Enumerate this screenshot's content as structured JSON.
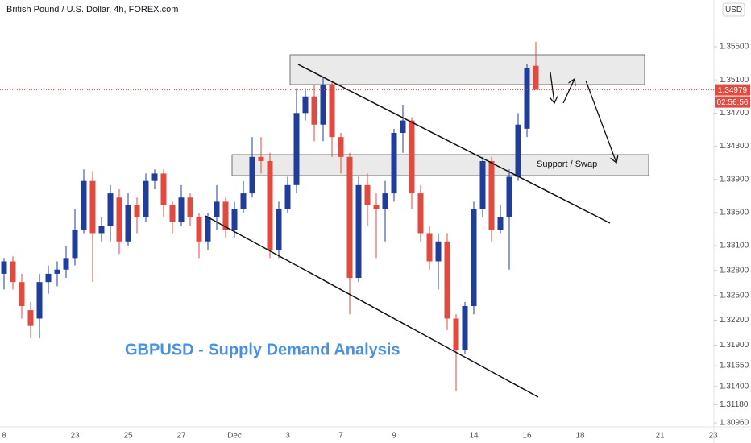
{
  "chart_data": {
    "type": "candlestick",
    "header": "British Pound / U.S. Dollar, 4h, FOREX.com",
    "title": "GBPUSD - Supply Demand Analysis",
    "annotations": [
      "Support / Swap"
    ],
    "currency": "USD",
    "last_price": 1.34979,
    "countdown": "02:56:56",
    "up_color": "#1f3d99",
    "down_color": "#e04a3f",
    "price_line_color": "#e04a3f",
    "categories": [
      "8",
      null,
      null,
      null,
      null,
      null,
      null,
      null,
      "23",
      null,
      null,
      null,
      null,
      null,
      "25",
      null,
      null,
      null,
      null,
      null,
      "27",
      null,
      null,
      null,
      null,
      null,
      "Dec",
      null,
      null,
      null,
      null,
      null,
      "3",
      null,
      null,
      null,
      null,
      null,
      "7",
      null,
      null,
      null,
      null,
      null,
      "9",
      null,
      null,
      null,
      null,
      null,
      null,
      null,
      null,
      "14",
      null,
      null,
      null,
      null,
      null,
      "16",
      null,
      null,
      null,
      null,
      null,
      "18",
      null,
      null,
      null,
      null,
      null,
      null,
      null,
      null,
      "21",
      null,
      null,
      null,
      null,
      null,
      "23"
    ],
    "open": [
      1.3276,
      1.3291,
      1.3266,
      1.3232,
      1.3222,
      1.3266,
      1.3276,
      1.3281,
      1.3295,
      1.3329,
      1.3388,
      1.3325,
      1.3334,
      1.3368,
      1.3315,
      1.3359,
      1.3344,
      1.3388,
      1.3397,
      1.3359,
      1.3339,
      1.3368,
      1.3344,
      1.3315,
      1.3344,
      1.3363,
      1.3329,
      1.3354,
      1.3373,
      1.3417,
      1.3412,
      1.3305,
      1.3354,
      1.3383,
      1.347,
      1.349,
      1.3456,
      1.3504,
      1.3441,
      1.3417,
      1.3271,
      1.3383,
      1.3359,
      1.3354,
      1.3373,
      1.3446,
      1.3461,
      1.3373,
      1.3325,
      1.3291,
      1.3315,
      1.3222,
      1.3184,
      1.3237,
      1.3354,
      1.3412,
      1.3329,
      1.3344,
      1.3393,
      1.3451,
      1.3527,
      null,
      null,
      null,
      null,
      null,
      null,
      null,
      null,
      null,
      null,
      null,
      null,
      null,
      null,
      null,
      null,
      null,
      null,
      null,
      null
    ],
    "high": [
      1.3295,
      1.3297,
      1.3276,
      1.3242,
      1.3276,
      1.3286,
      1.3291,
      1.331,
      1.3354,
      1.3402,
      1.34,
      1.3344,
      1.3383,
      1.3378,
      1.3373,
      1.3368,
      1.3397,
      1.3402,
      1.3402,
      1.3363,
      1.3383,
      1.3373,
      1.3349,
      1.3349,
      1.3383,
      1.3368,
      1.3363,
      1.3388,
      1.3441,
      1.3441,
      1.3422,
      1.3363,
      1.3393,
      1.35,
      1.35,
      1.3504,
      1.3514,
      1.3509,
      1.3446,
      1.3422,
      1.3393,
      1.3397,
      1.3373,
      1.3388,
      1.3451,
      1.348,
      1.3465,
      1.3383,
      1.3334,
      1.3325,
      1.3325,
      1.3227,
      1.3242,
      1.3363,
      1.3417,
      1.3417,
      1.3359,
      1.3402,
      1.347,
      1.3529,
      1.3556,
      null,
      null,
      null,
      null,
      null,
      null,
      null,
      null,
      null,
      null,
      null,
      null,
      null,
      null,
      null,
      null,
      null,
      null,
      null,
      null
    ],
    "low": [
      1.3257,
      1.3257,
      1.3222,
      1.3198,
      1.3198,
      1.3252,
      1.3261,
      1.3271,
      1.3286,
      1.3325,
      1.3266,
      1.3315,
      1.3315,
      1.33,
      1.331,
      1.3325,
      1.3339,
      1.3378,
      1.3344,
      1.3325,
      1.3334,
      1.3334,
      1.3295,
      1.3305,
      1.3329,
      1.332,
      1.332,
      1.3349,
      1.3368,
      1.3397,
      1.3295,
      1.3295,
      1.3349,
      1.3373,
      1.3461,
      1.3436,
      1.3436,
      1.3417,
      1.3397,
      1.3227,
      1.3266,
      1.3334,
      1.3295,
      1.3315,
      1.3363,
      1.3422,
      1.3354,
      1.3315,
      1.3281,
      1.3257,
      1.3208,
      1.3135,
      1.3179,
      1.3227,
      1.3344,
      1.3315,
      1.3325,
      1.3281,
      1.3388,
      1.3441,
      1.35,
      null,
      null,
      null,
      null,
      null,
      null,
      null,
      null,
      null,
      null,
      null,
      null,
      null,
      null,
      null,
      null,
      null,
      null,
      null,
      null
    ],
    "close": [
      1.3291,
      1.3266,
      1.3237,
      1.3213,
      1.3266,
      1.3276,
      1.3281,
      1.3295,
      1.3329,
      1.3388,
      1.3325,
      1.3334,
      1.3373,
      1.3315,
      1.3359,
      1.3344,
      1.3388,
      1.3397,
      1.3359,
      1.3339,
      1.3368,
      1.3344,
      1.3315,
      1.3344,
      1.3363,
      1.3329,
      1.3354,
      1.3373,
      1.3417,
      1.3412,
      1.3305,
      1.3354,
      1.3383,
      1.347,
      1.349,
      1.3456,
      1.3504,
      1.3441,
      1.3417,
      1.3271,
      1.3383,
      1.3359,
      1.3354,
      1.3373,
      1.3446,
      1.3461,
      1.3373,
      1.3325,
      1.3291,
      1.3315,
      1.3222,
      1.3184,
      1.3237,
      1.3354,
      1.3412,
      1.3329,
      1.3344,
      1.3393,
      1.3456,
      1.3524,
      1.34979,
      null,
      null,
      null,
      null,
      null,
      null,
      null,
      null,
      null,
      null,
      null,
      null,
      null,
      null,
      null,
      null,
      null,
      null,
      null,
      null
    ],
    "ylim": [
      1.30912,
      1.36064
    ],
    "yticks": [
      {
        "value": 1.355,
        "label": "1.35500"
      },
      {
        "value": 1.351,
        "label": "1.35100"
      },
      {
        "value": 1.347,
        "label": "1.34700"
      },
      {
        "value": 1.343,
        "label": "1.34300"
      },
      {
        "value": 1.339,
        "label": "1.33900"
      },
      {
        "value": 1.335,
        "label": "1.33500"
      },
      {
        "value": 1.331,
        "label": "1.33100"
      },
      {
        "value": 1.328,
        "label": "1.32800"
      },
      {
        "value": 1.325,
        "label": "1.32500"
      },
      {
        "value": 1.322,
        "label": "1.32200"
      },
      {
        "value": 1.319,
        "label": "1.31900"
      },
      {
        "value": 1.3165,
        "label": "1.31650"
      },
      {
        "value": 1.314,
        "label": "1.31400"
      },
      {
        "value": 1.3118,
        "label": "1.31180"
      },
      {
        "value": 1.3096,
        "label": "1.30960"
      }
    ]
  }
}
